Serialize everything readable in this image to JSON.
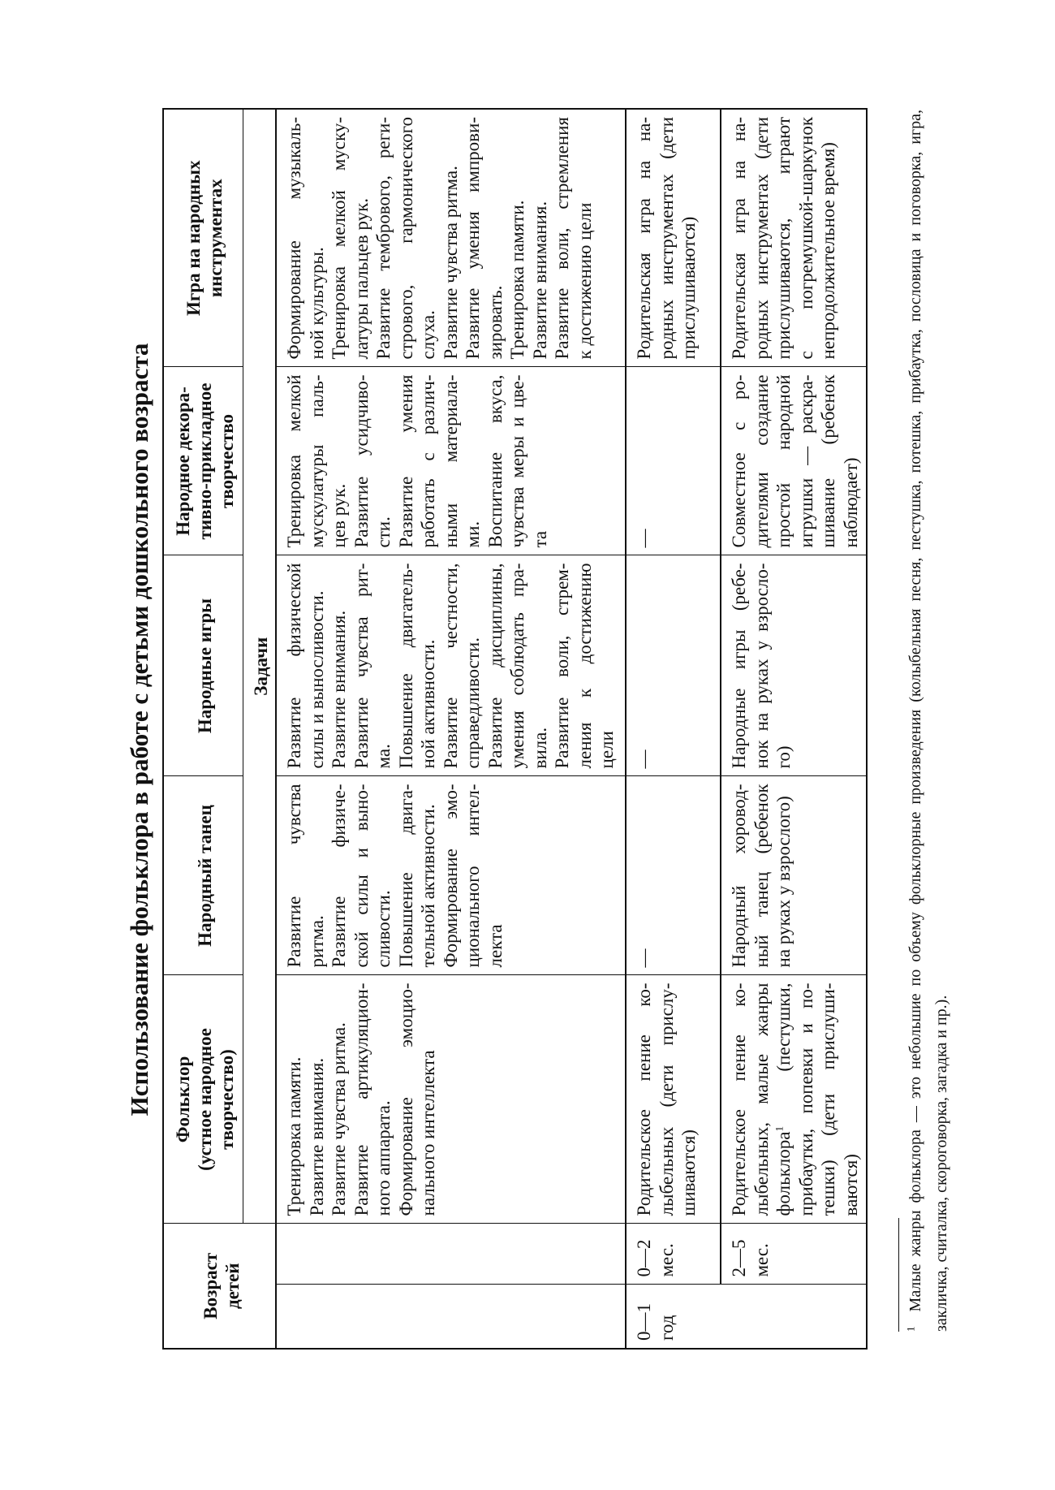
{
  "title": "Использование фольклора в работе с детьми дошкольного возраста",
  "headers": {
    "age": [
      "Возраст",
      "детей"
    ],
    "folklore": [
      "Фольклор",
      "(устное народное",
      "творчество)"
    ],
    "dance": [
      "Народный танец"
    ],
    "games": [
      "Народные игры"
    ],
    "decor": [
      "Народное декора-",
      "тивно-прикладное",
      "творчество"
    ],
    "instruments": [
      "Игра на народных",
      "инструментах"
    ],
    "tasks": "Задачи"
  },
  "rows": [
    {
      "age_year": [],
      "age_month": [],
      "folklore": [
        [
          "Тренировка памяти."
        ],
        [
          "Развитие внимания."
        ],
        [
          "Развитие чувства ритма."
        ],
        [
          "Развитие артикуляцион-",
          "ного аппарата."
        ],
        [
          "Формирование эмоцио-",
          "нального интеллекта"
        ]
      ],
      "dance": [
        [
          "Развитие чувства",
          "ритма."
        ],
        [
          "Развитие физиче-",
          "ской силы и выно-",
          "сливости."
        ],
        [
          "Повышение двига-",
          "тельной активности."
        ],
        [
          "Формирование эмо-",
          "ционального интел-",
          "лекта"
        ]
      ],
      "games": [
        [
          "Развитие физической",
          "силы и выносливости."
        ],
        [
          "Развитие внимания."
        ],
        [
          "Развитие чувства рит-",
          "ма."
        ],
        [
          "Повышение двигатель-",
          "ной активности."
        ],
        [
          "Развитие честности,",
          "справедливости."
        ],
        [
          "Развитие дисциплины,",
          "умения соблюдать пра-",
          "вила."
        ],
        [
          "Развитие воли, стрем-",
          "ления к достижению",
          "цели"
        ]
      ],
      "decor": [
        [
          "Тренировка мелкой",
          "мускулатуры паль-",
          "цев рук."
        ],
        [
          "Развитие усидчиво-",
          "сти."
        ],
        [
          "Развитие умения",
          "работать с различ-",
          "ными материала-",
          "ми."
        ],
        [
          "Воспитание вкуса,",
          "чувства меры и цве-",
          "та"
        ]
      ],
      "instruments": [
        [
          "Формирование музыкаль-",
          "ной культуры."
        ],
        [
          "Тренировка мелкой муску-",
          "латуры пальцев рук."
        ],
        [
          "Развитие тембрового, реги-",
          "стрового, гармонического",
          "слуха."
        ],
        [
          "Развитие чувства ритма."
        ],
        [
          "Развитие умения импрови-",
          "зировать."
        ],
        [
          "Тренировка памяти."
        ],
        [
          "Развитие внимания."
        ],
        [
          "Развитие воли, стремления",
          "к достижению цели"
        ]
      ]
    },
    {
      "age_year": [
        [
          "0—1",
          "год"
        ]
      ],
      "age_month": [
        [
          "0—2",
          "мес."
        ]
      ],
      "folklore": [
        [
          "Родительское пение ко-",
          "лыбельных (дети прислу-",
          "шиваются)"
        ]
      ],
      "dance": [
        [
          "—"
        ]
      ],
      "games": [
        [
          "—"
        ]
      ],
      "decor": [
        [
          "—"
        ]
      ],
      "instruments": [
        [
          "Родительская игра на на-",
          "родных инструментах (дети",
          "прислушиваются)"
        ]
      ]
    },
    {
      "age_month": [
        [
          "2—5",
          "мес."
        ]
      ],
      "folklore": [
        [
          "Родительское пение ко-",
          "лыбельных, малые жанры",
          "фольклора¹ (пестушки,",
          "прибаутки, попевки и по-",
          "тешки) (дети прислуши-",
          "ваются)"
        ]
      ],
      "dance": [
        [
          "Народный хоровод-",
          "ный танец (ребенок",
          "на руках у взрослого)"
        ]
      ],
      "games": [
        [
          "Народные игры (ребе-",
          "нок на руках у взросло-",
          "го)"
        ]
      ],
      "decor": [
        [
          "Совместное с ро-",
          "дителями создание",
          "простой народной",
          "игрушки — раскра-",
          "шивание (ребенок",
          "наблюдает)"
        ]
      ],
      "instruments": [
        [
          "Родительская игра на на-",
          "родных инструментах (дети",
          "прислушиваются, играют",
          "с погремушкой-шаркунок",
          "непродолжительное время)"
        ]
      ]
    }
  ],
  "footnote": {
    "mark": "1",
    "text": "Малые жанры фольклора — это небольшие по объему фольклорные произведения (колыбельная песня, пестушка, потешка, прибаутка, пословица и поговорка, игра, закличка, считалка, скороговорка, загадка и пр.)."
  }
}
